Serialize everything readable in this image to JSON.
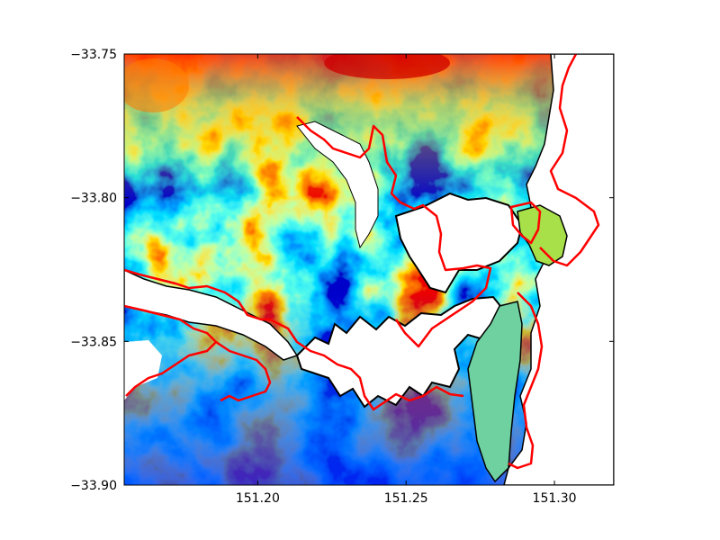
{
  "chart_data": {
    "type": "heatmap",
    "title": "",
    "xlabel": "",
    "ylabel": "",
    "xlim": [
      151.155,
      151.32
    ],
    "ylim": [
      -33.9,
      -33.75
    ],
    "x_ticks": [
      151.2,
      151.25,
      151.3
    ],
    "y_ticks": [
      -33.9,
      -33.85,
      -33.8,
      -33.75
    ],
    "x_tick_labels": [
      "151.20",
      "151.25",
      "151.30"
    ],
    "y_tick_labels": [
      "−33.90",
      "−33.85",
      "−33.80",
      "−33.75"
    ],
    "colormap": "jet",
    "nodata_color": "#ffffff",
    "overlay_line_color": "#ff0000",
    "coast_line_color": "#000000",
    "grid": false,
    "legend": "none"
  }
}
